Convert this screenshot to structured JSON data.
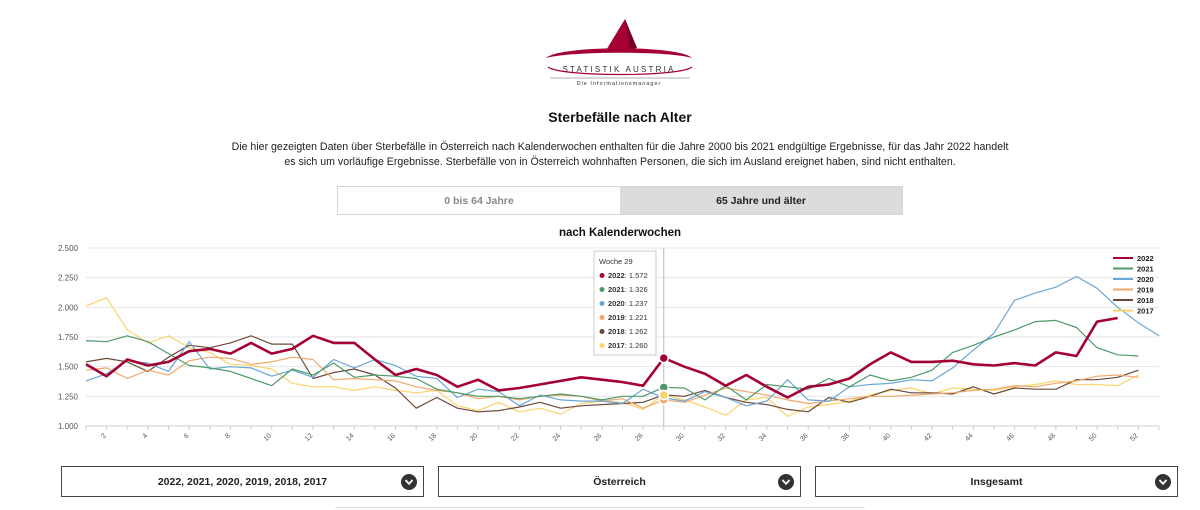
{
  "logo": {
    "text": "STATISTIK AUSTRIA",
    "tagline": "Die Informationsmanager"
  },
  "page_title": "Sterbefälle nach Alter",
  "intro": "Die hier gezeigten Daten über Sterbefälle in Österreich nach Kalenderwochen enthalten für die Jahre 2000 bis 2021 endgültige Ergebnisse, für das Jahr 2022 handelt es sich um vorläufige Ergebnisse. Sterbefälle von in Österreich wohnhaften Personen, die sich im Ausland ereignet haben, sind nicht enthalten.",
  "tabs": [
    {
      "label": "0 bis 64 Jahre",
      "active": false
    },
    {
      "label": "65 Jahre und älter",
      "active": true
    }
  ],
  "selects": {
    "years": "2022, 2021, 2020, 2019, 2018, 2017",
    "region": "Österreich",
    "sex": "Insgesamt"
  },
  "colors": {
    "brand": "#a50034",
    "grid": "#e6e6e6",
    "axis": "#cccccc"
  },
  "chart_data": {
    "type": "line",
    "title": "nach Kalenderwochen",
    "xlabel": "",
    "ylabel": "",
    "xlim": [
      1,
      53
    ],
    "ylim": [
      1000,
      2500
    ],
    "yticks": [
      1000,
      1250,
      1500,
      1750,
      2000,
      2250,
      2500
    ],
    "ytick_labels": [
      "1.000",
      "1.250",
      "1.500",
      "1.750",
      "2.000",
      "2.250",
      "2.500"
    ],
    "xticks": [
      2,
      4,
      6,
      8,
      10,
      12,
      14,
      16,
      18,
      20,
      22,
      24,
      26,
      28,
      30,
      32,
      34,
      36,
      38,
      40,
      42,
      44,
      46,
      48,
      50,
      52
    ],
    "grid": true,
    "legend": "top-right",
    "series": [
      {
        "name": "2022",
        "color": "#a50034",
        "values": [
          1520,
          1420,
          1560,
          1510,
          1540,
          1630,
          1650,
          1610,
          1700,
          1610,
          1650,
          1760,
          1700,
          1700,
          1560,
          1430,
          1480,
          1430,
          1330,
          1390,
          1300,
          1320,
          1350,
          1380,
          1410,
          1390,
          1370,
          1340,
          1572,
          1500,
          1440,
          1340,
          1430,
          1330,
          1240,
          1330,
          1350,
          1400,
          1520,
          1620,
          1540,
          1540,
          1550,
          1520,
          1510,
          1530,
          1510,
          1620,
          1590,
          1880,
          1910,
          null,
          null
        ]
      },
      {
        "name": "2021",
        "color": "#4e9a6a",
        "values": [
          1720,
          1710,
          1760,
          1710,
          1610,
          1510,
          1490,
          1460,
          1400,
          1340,
          1480,
          1430,
          1530,
          1410,
          1430,
          1420,
          1400,
          1310,
          1280,
          1250,
          1250,
          1230,
          1250,
          1270,
          1250,
          1220,
          1250,
          1250,
          1326,
          1320,
          1220,
          1340,
          1220,
          1350,
          1330,
          1310,
          1400,
          1330,
          1430,
          1380,
          1410,
          1470,
          1620,
          1680,
          1750,
          1810,
          1880,
          1890,
          1830,
          1660,
          1600,
          1590,
          null
        ]
      },
      {
        "name": "2020",
        "color": "#6ba6d6",
        "values": [
          1380,
          1440,
          1550,
          1530,
          1460,
          1710,
          1480,
          1500,
          1490,
          1420,
          1470,
          1410,
          1560,
          1490,
          1560,
          1510,
          1420,
          1400,
          1240,
          1310,
          1290,
          1170,
          1260,
          1220,
          1210,
          1210,
          1190,
          1310,
          1237,
          1210,
          1290,
          1240,
          1170,
          1210,
          1390,
          1220,
          1210,
          1330,
          1350,
          1360,
          1390,
          1380,
          1490,
          1640,
          1780,
          2060,
          2120,
          2170,
          2260,
          2160,
          2000,
          1870,
          1760
        ]
      },
      {
        "name": "2019",
        "color": "#f2a86b",
        "values": [
          1470,
          1490,
          1400,
          1470,
          1430,
          1550,
          1580,
          1570,
          1520,
          1540,
          1580,
          1560,
          1390,
          1400,
          1390,
          1380,
          1330,
          1300,
          1280,
          1230,
          1250,
          1220,
          1250,
          1260,
          1250,
          1210,
          1230,
          1150,
          1221,
          1200,
          1260,
          1320,
          1290,
          1260,
          1220,
          1190,
          1210,
          1230,
          1250,
          1250,
          1260,
          1270,
          1280,
          1300,
          1310,
          1340,
          1330,
          1360,
          1380,
          1420,
          1430,
          1410,
          null
        ]
      },
      {
        "name": "2018",
        "color": "#6b4a3a",
        "values": [
          1540,
          1570,
          1540,
          1460,
          1580,
          1680,
          1660,
          1700,
          1760,
          1690,
          1690,
          1400,
          1450,
          1480,
          1430,
          1320,
          1150,
          1240,
          1150,
          1120,
          1130,
          1160,
          1200,
          1150,
          1170,
          1180,
          1190,
          1200,
          1262,
          1250,
          1300,
          1240,
          1200,
          1180,
          1140,
          1120,
          1240,
          1200,
          1250,
          1310,
          1280,
          1280,
          1270,
          1330,
          1270,
          1320,
          1310,
          1310,
          1390,
          1390,
          1410,
          1470,
          null
        ]
      },
      {
        "name": "2017",
        "color": "#fad36b",
        "values": [
          2010,
          2080,
          1810,
          1700,
          1760,
          1660,
          1620,
          1520,
          1510,
          1480,
          1360,
          1330,
          1330,
          1300,
          1330,
          1300,
          1280,
          1300,
          1170,
          1130,
          1200,
          1120,
          1150,
          1100,
          1190,
          1210,
          1200,
          1140,
          1260,
          1220,
          1160,
          1090,
          1220,
          1240,
          1080,
          1160,
          1180,
          1210,
          1260,
          1300,
          1320,
          1270,
          1320,
          1310,
          1300,
          1330,
          1350,
          1380,
          1350,
          1350,
          1340,
          1430,
          null
        ]
      }
    ],
    "tooltip": {
      "week": 29,
      "header": "Woche 29",
      "rows": [
        {
          "year": "2022",
          "value": "1.572",
          "color": "#a50034"
        },
        {
          "year": "2021",
          "value": "1.326",
          "color": "#4e9a6a"
        },
        {
          "year": "2020",
          "value": "1.237",
          "color": "#6ba6d6"
        },
        {
          "year": "2019",
          "value": "1.221",
          "color": "#f2a86b"
        },
        {
          "year": "2018",
          "value": "1.262",
          "color": "#6b4a3a"
        },
        {
          "year": "2017",
          "value": "1.260",
          "color": "#fad36b"
        }
      ]
    }
  }
}
